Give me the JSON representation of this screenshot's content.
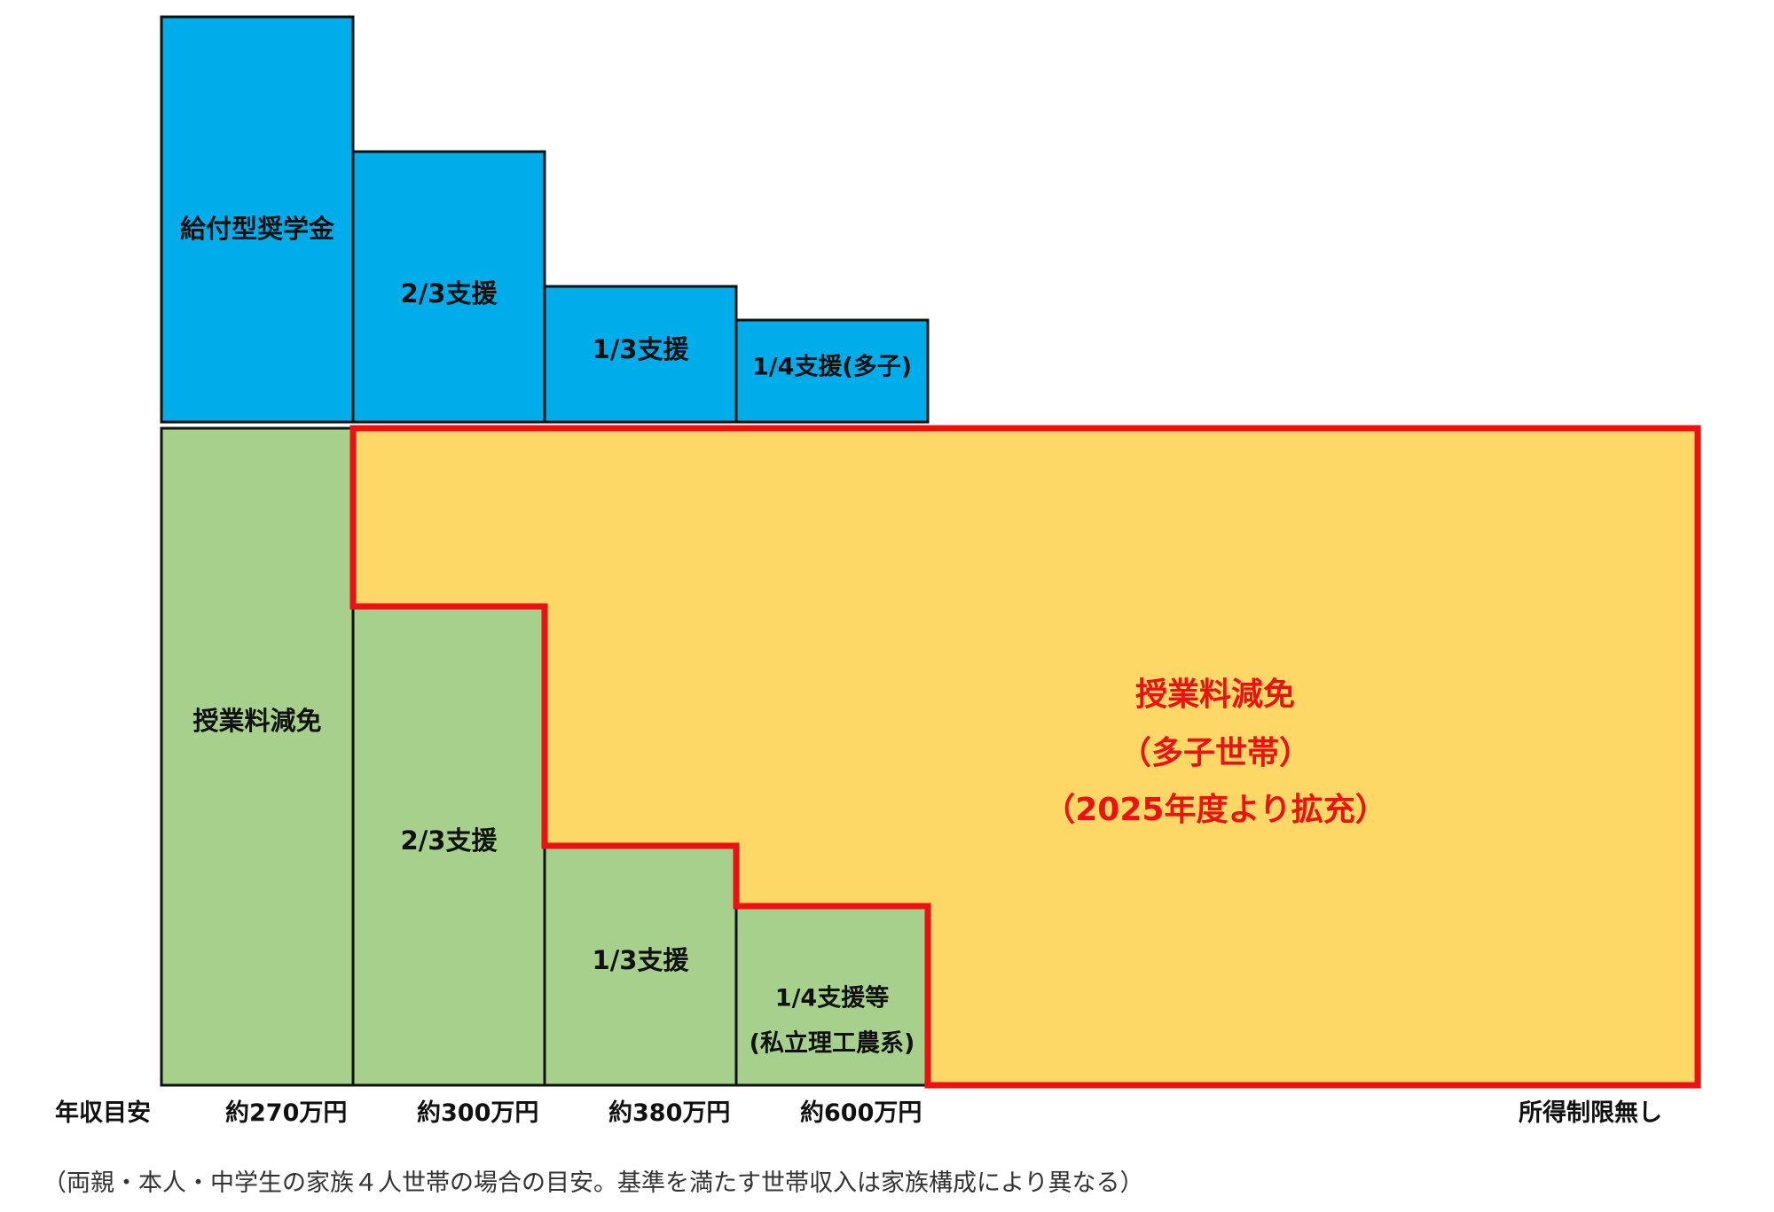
{
  "colors": {
    "scholarship_blue": "#00adeb",
    "tuition_green": "#a7d08c",
    "expansion_yellow": "#fdd867",
    "expansion_border_red": "#ee1111",
    "expansion_text_red": "#ee1111",
    "outline_black": "#111111"
  },
  "scholarship_tiers": [
    {
      "label": "給付型奨学金"
    },
    {
      "label": "2/3支援"
    },
    {
      "label": "1/3支援"
    },
    {
      "label": "1/4支援(多子)"
    }
  ],
  "tuition_tiers": [
    {
      "label": "授業料減免"
    },
    {
      "label": "2/3支援"
    },
    {
      "label": "1/3支援"
    },
    {
      "label_line1": "1/4支援等",
      "label_line2": "(私立理工農系)"
    }
  ],
  "expansion": {
    "line1": "授業料減免",
    "line2": "（多子世帯）",
    "line3": "（2025年度より拡充）"
  },
  "income_axis": {
    "title": "年収目安",
    "thresholds": [
      "約270万円",
      "約300万円",
      "約380万円",
      "約600万円",
      "所得制限無し"
    ]
  },
  "footnote": "（両親・本人・中学生の家族４人世帯の場合の目安。基準を満たす世帯収入は家族構成により異なる）"
}
